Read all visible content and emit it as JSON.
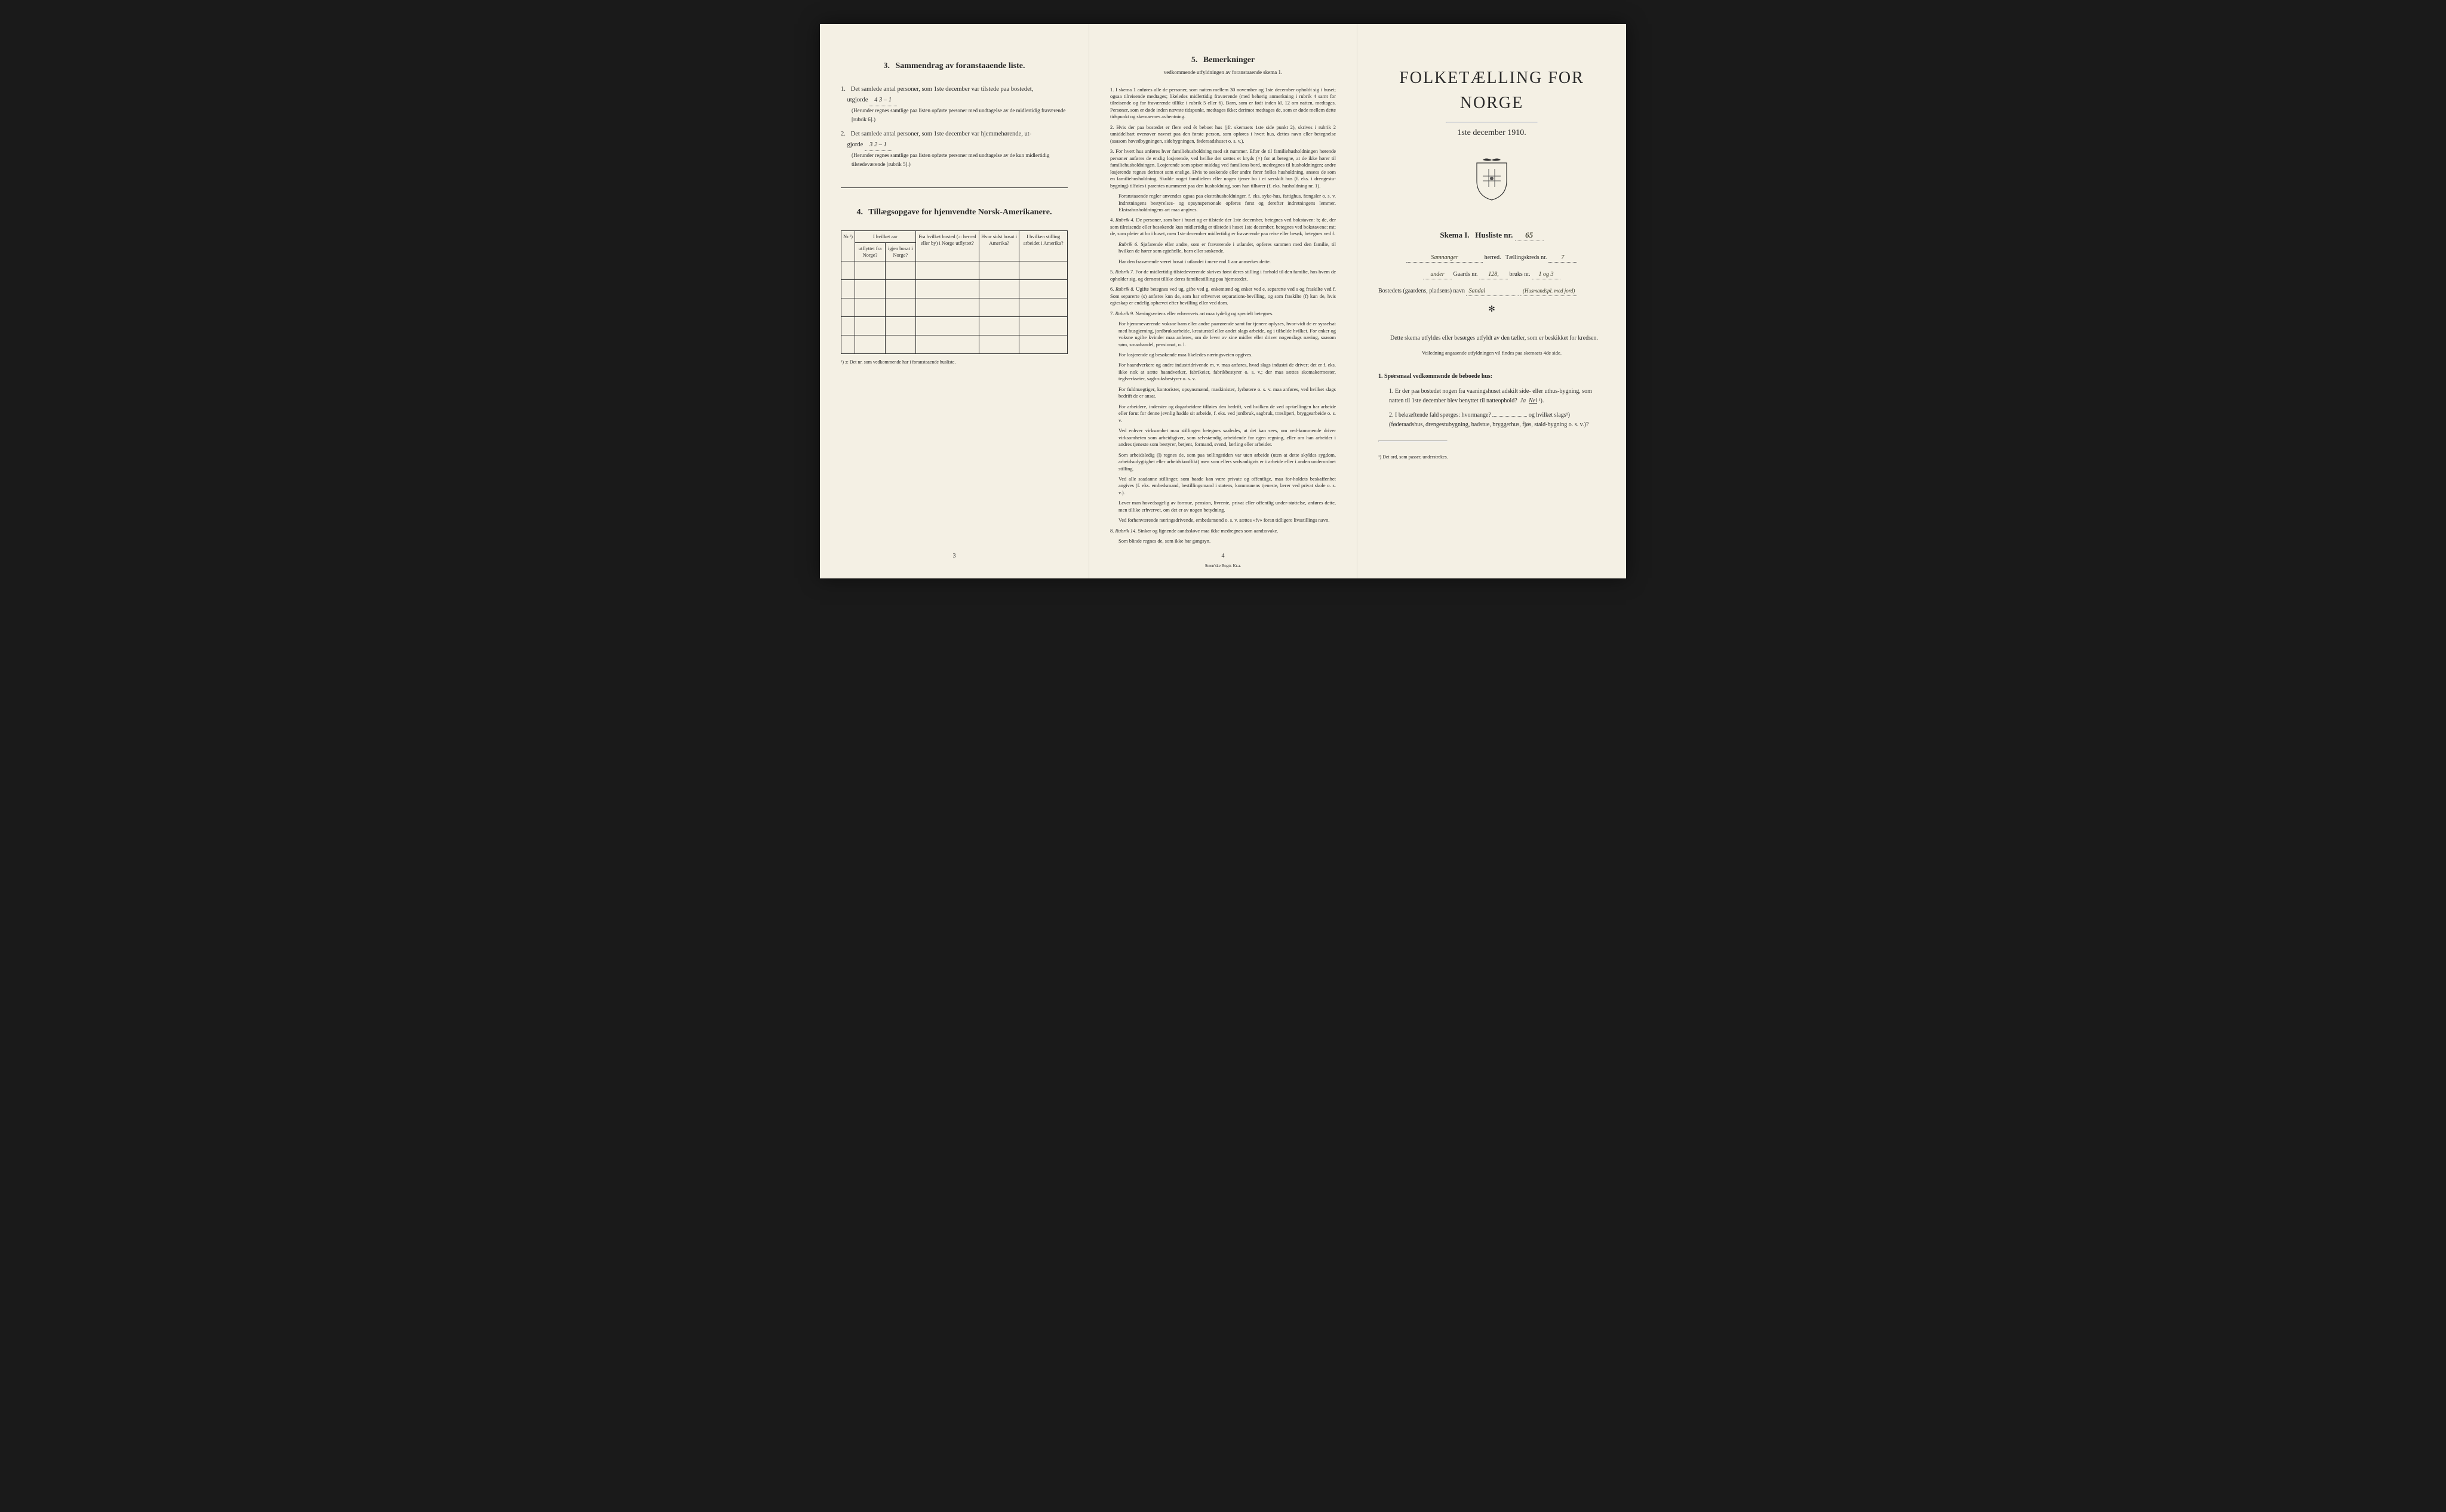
{
  "page_left": {
    "section3": {
      "number": "3.",
      "title": "Sammendrag av foranstaaende liste.",
      "item1": {
        "num": "1.",
        "text_a": "Det samlede antal personer, som 1ste december var tilstede paa bostedet,",
        "text_b": "utgjorde",
        "value": "4    3 – 1",
        "note": "(Herunder regnes samtlige paa listen opførte personer med undtagelse av de midlertidig fraværende [rubrik 6].)"
      },
      "item2": {
        "num": "2.",
        "text_a": "Det samlede antal personer, som 1ste december var hjemmehørende, ut-",
        "text_b": "gjorde",
        "value": "3    2 – 1",
        "note": "(Herunder regnes samtlige paa listen opførte personer med undtagelse av de kun midlertidig tilstedeværende [rubrik 5].)"
      }
    },
    "section4": {
      "number": "4.",
      "title": "Tillægsopgave for hjemvendte Norsk-Amerikanere.",
      "table": {
        "headers": {
          "col1": "Nr.¹)",
          "col2_top": "I hvilket aar",
          "col2a": "utflyttet fra Norge?",
          "col2b": "igjen bosat i Norge?",
          "col3": "Fra hvilket bosted (ɔ: herred eller by) i Norge utflyttet?",
          "col4": "Hvor sidst bosat i Amerika?",
          "col5": "I hvilken stilling arbeidet i Amerika?"
        },
        "rows": 5
      },
      "footnote": "¹) ɔ: Det nr. som vedkommende har i foranstaaende husliste."
    },
    "page_number": "3"
  },
  "page_middle": {
    "section5": {
      "number": "5.",
      "title": "Bemerkninger",
      "subtitle": "vedkommende utfyldningen av foranstaaende skema 1.",
      "items": [
        {
          "num": "1.",
          "text": "I skema 1 anføres alle de personer, som natten mellem 30 november og 1ste december opholdt sig i huset; ogsaa tilreisende medtages; likeledes midlertidig fraværende (med behørig anmerkning i rubrik 4 samt for tilreisende og for fraværende tillike i rubrik 5 eller 6). Barn, som er født inden kl. 12 om natten, medtages. Personer, som er døde inden nævnte tidspunkt, medtages ikke; derimot medtages de, som er døde mellem dette tidspunkt og skemaernes avhentning."
        },
        {
          "num": "2.",
          "text": "Hvis der paa bostedet er flere end ét beboet hus (jfr. skemaets 1ste side punkt 2), skrives i rubrik 2 umiddelbart ovenover navnet paa den første person, som opføres i hvert hus, dettes navn eller betegnelse (saasom hovedbygningen, sidebygningen, føderaadshuset o. s. v.)."
        },
        {
          "num": "3.",
          "text": "For hvert hus anføres hver familiehusholdning med sit nummer. Efter de til familiehusholdningen hørende personer anføres de enslig losjerende, ved hvilke der sættes et kryds (×) for at betegne, at de ikke hører til familiehusholdningen. Losjerende som spiser middag ved familiens bord, medregnes til husholdningen; andre losjerende regnes derimot som enslige. Hvis to søskende eller andre fører fælles husholdning, ansees de som en familiehusholdning. Skulde noget familielem eller nogen tjener bo i et særskilt hus (f. eks. i drengestu-bygning) tilføies i parentes nummeret paa den husholdning, som han tilhører (f. eks. husholdning nr. 1)."
        },
        {
          "num": "",
          "text": "Foranstaaende regler anvendes ogsaa paa ekstrahusholdninger, f. eks. syke-hus, fattighus, fængsler o. s. v. Indretningens bestyrelses- og opsynspersonale opføres først og derefter indretningens lemmer. Ekstrahusholdningens art maa angives."
        },
        {
          "num": "4.",
          "rubrik": "Rubrik 4.",
          "text": "De personer, som bor i huset og er tilstede der 1ste december, betegnes ved bokstaven: b; de, der som tilreisende eller besøkende kun midlertidig er tilstede i huset 1ste december, betegnes ved bokstavene: mt; de, som pleier at bo i huset, men 1ste december midlertidig er fraværende paa reise eller besøk, betegnes ved f."
        },
        {
          "num": "",
          "rubrik": "Rubrik 6.",
          "text": "Sjøfarende eller andre, som er fraværende i utlandet, opføres sammen med den familie, til hvilken de hører som egtefælle, barn eller søskende."
        },
        {
          "num": "",
          "text": "Har den fraværende været bosat i utlandet i mere end 1 aar anmerkes dette."
        },
        {
          "num": "5.",
          "rubrik": "Rubrik 7.",
          "text": "For de midlertidig tilstedeværende skrives først deres stilling i forhold til den familie, hos hvem de opholder sig, og dernæst tillike deres familiestilling paa hjemstedet."
        },
        {
          "num": "6.",
          "rubrik": "Rubrik 8.",
          "text": "Ugifte betegnes ved ug, gifte ved g, enkemænd og enker ved e, separerte ved s og fraskilte ved f. Som separerte (s) anføres kun de, som har erhvervet separations-bevilling, og som fraskilte (f) kun de, hvis egteskap er endelig ophævet efter bevilling eller ved dom."
        },
        {
          "num": "7.",
          "rubrik": "Rubrik 9.",
          "text": "Næringsveiens eller erhvervets art maa tydelig og specielt betegnes."
        },
        {
          "num": "",
          "text": "For hjemmeværende voksne barn eller andre paarørende samt for tjenere oplyses, hvor-vidt de er sysselsat med husgjerning, jordbruksarbeide, kreaturstel eller andet slags arbeide, og i tilfælde hvilket. For enker og voksne ugifte kvinder maa anføres, om de lever av sine midler eller driver nogenslags næring, saasom søm, smaahandel, pensionat, o. l."
        },
        {
          "num": "",
          "text": "For losjerende og besøkende maa likeledes næringsveien opgives."
        },
        {
          "num": "",
          "text": "For haandverkere og andre industridrivende m. v. maa anføres, hvad slags industri de driver; det er f. eks. ikke nok at sætte haandverker, fabrikeier, fabrikbestyrer o. s. v.; der maa sættes skomakermester, teglverkseier, sagbruksbestyrer o. s. v."
        },
        {
          "num": "",
          "text": "For fuldmægtiger, kontorister, opsynsmænd, maskinister, fyrbøtere o. s. v. maa anføres, ved hvilket slags bedrift de er ansat."
        },
        {
          "num": "",
          "text": "For arbeidere, inderster og dagarbeidere tilføies den bedrift, ved hvilken de ved op-tællingen har arbeide eller forut for denne jevnlig hadde sit arbeide, f. eks. ved jordbruk, sagbruk, træsliperi, bryggearbeide o. s. v."
        },
        {
          "num": "",
          "text": "Ved enhver virksomhet maa stillingen betegnes saaledes, at det kan sees, om ved-kommende driver virksomheten som arbeidsgiver, som selvstændig arbeidende for egen regning, eller om han arbeider i andres tjeneste som bestyrer, betjent, formand, svend, lærling eller arbeider."
        },
        {
          "num": "",
          "text": "Som arbeidsledig (l) regnes de, som paa tællingstiden var uten arbeide (uten at dette skyldes sygdom, arbeidsudygtighet eller arbeidskonflikt) men som ellers sedvanligvis er i arbeide eller i anden underordnet stilling."
        },
        {
          "num": "",
          "text": "Ved alle saadanne stillinger, som baade kan være private og offentlige, maa for-holdets beskaffenhet angives (f. eks. embedsmand, bestillingsmand i statens, kommunens tjeneste, lærer ved privat skole o. s. v.)."
        },
        {
          "num": "",
          "text": "Lever man hovedsagelig av formue, pension, livrente, privat eller offentlig under-støttelse, anføres dette, men tillike erhvervet, om det er av nogen betydning."
        },
        {
          "num": "",
          "text": "Ved forhenværende næringsdrivende, embedsmænd o. s. v. sættes «fv» foran tidligere livsstillings navn."
        },
        {
          "num": "8.",
          "rubrik": "Rubrik 14.",
          "text": "Sinker og lignende aandssløve maa ikke medregnes som aandssvake."
        },
        {
          "num": "",
          "text": "Som blinde regnes de, som ikke har gangsyn."
        }
      ]
    },
    "page_number": "4",
    "imprint": "Steen'ske Bogtr. Kr.a."
  },
  "page_right": {
    "title_main": "FOLKETÆLLING FOR NORGE",
    "title_date": "1ste december 1910.",
    "skema": {
      "label_a": "Skema I.",
      "label_b": "Husliste nr.",
      "value": "65"
    },
    "fields": {
      "herred": {
        "value": "Samnanger",
        "label": "herred.",
        "kreds_label": "Tællingskreds nr.",
        "kreds_value": "7"
      },
      "gaards": {
        "prefix": "under",
        "label_a": "Gaards nr.",
        "value_a": "128,",
        "label_b": "bruks nr.",
        "value_b": "1 og 3"
      },
      "bosted": {
        "label": "Bostedets (gaardens, pladsens) navn",
        "value": "Sandal",
        "note": "(Husmandspl. med jord)"
      }
    },
    "body": {
      "text1": "Dette skema utfyldes eller besørges utfyldt av den tæller, som er beskikket for kredsen.",
      "veil": "Veiledning angaaende utfyldningen vil findes paa skemaets 4de side."
    },
    "questions": {
      "heading": "1. Spørsmaal vedkommende de beboede hus:",
      "q1": {
        "num": "1.",
        "text": "Er der paa bostedet nogen fra vaaningshuset adskilt side- eller uthus-bygning, som natten til 1ste december blev benyttet til natteophold?",
        "ja": "Ja",
        "nei": "Nei",
        "ref": "¹)."
      },
      "q2": {
        "num": "2.",
        "text_a": "I bekræftende fald spørges: hvormange?",
        "blank": "",
        "text_b": "og hvilket slags¹)",
        "text_c": "(føderaadshus, drengestubygning, badstue, bryggerhus, fjøs, stald-bygning o. s. v.)?"
      }
    },
    "footnote": "¹) Det ord, som passer, understrekes."
  }
}
